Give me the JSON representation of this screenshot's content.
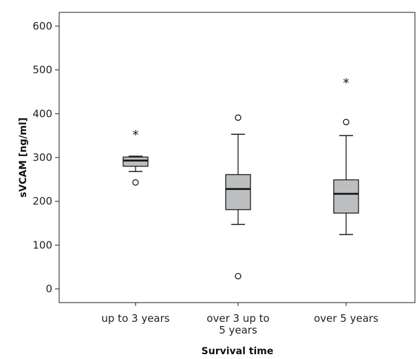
{
  "chart_data": {
    "type": "boxplot",
    "title": "",
    "xlabel": "Survival time",
    "ylabel": "sVCAM [ng/ml]",
    "ylim": [
      -30,
      675
    ],
    "yticks": [
      0,
      100,
      200,
      300,
      400,
      500,
      600
    ],
    "grid": false,
    "categories": [
      "up to 3 years",
      "over 3 up to\n5 years",
      "over 5 years"
    ],
    "boxes": [
      {
        "category": "up to 3 years",
        "whisker_low": 268,
        "q1": 280,
        "median": 293,
        "q3": 301,
        "whisker_high": 303,
        "outliers": [
          {
            "value": 243,
            "marker": "circle"
          },
          {
            "value": 360,
            "marker": "star"
          }
        ]
      },
      {
        "category": "over 3 up to 5 years",
        "whisker_low": 147,
        "q1": 181,
        "median": 228,
        "q3": 261,
        "whisker_high": 353,
        "outliers": [
          {
            "value": 391,
            "marker": "circle"
          },
          {
            "value": 29,
            "marker": "circle"
          }
        ]
      },
      {
        "category": "over 5 years",
        "whisker_low": 124,
        "q1": 173,
        "median": 217,
        "q3": 249,
        "whisker_high": 350,
        "outliers": [
          {
            "value": 381,
            "marker": "circle"
          },
          {
            "value": 478,
            "marker": "star"
          }
        ]
      }
    ],
    "colors": {
      "box_fill": "#bdbec0",
      "stroke": "#1a1a1a",
      "median": "#111111"
    }
  }
}
